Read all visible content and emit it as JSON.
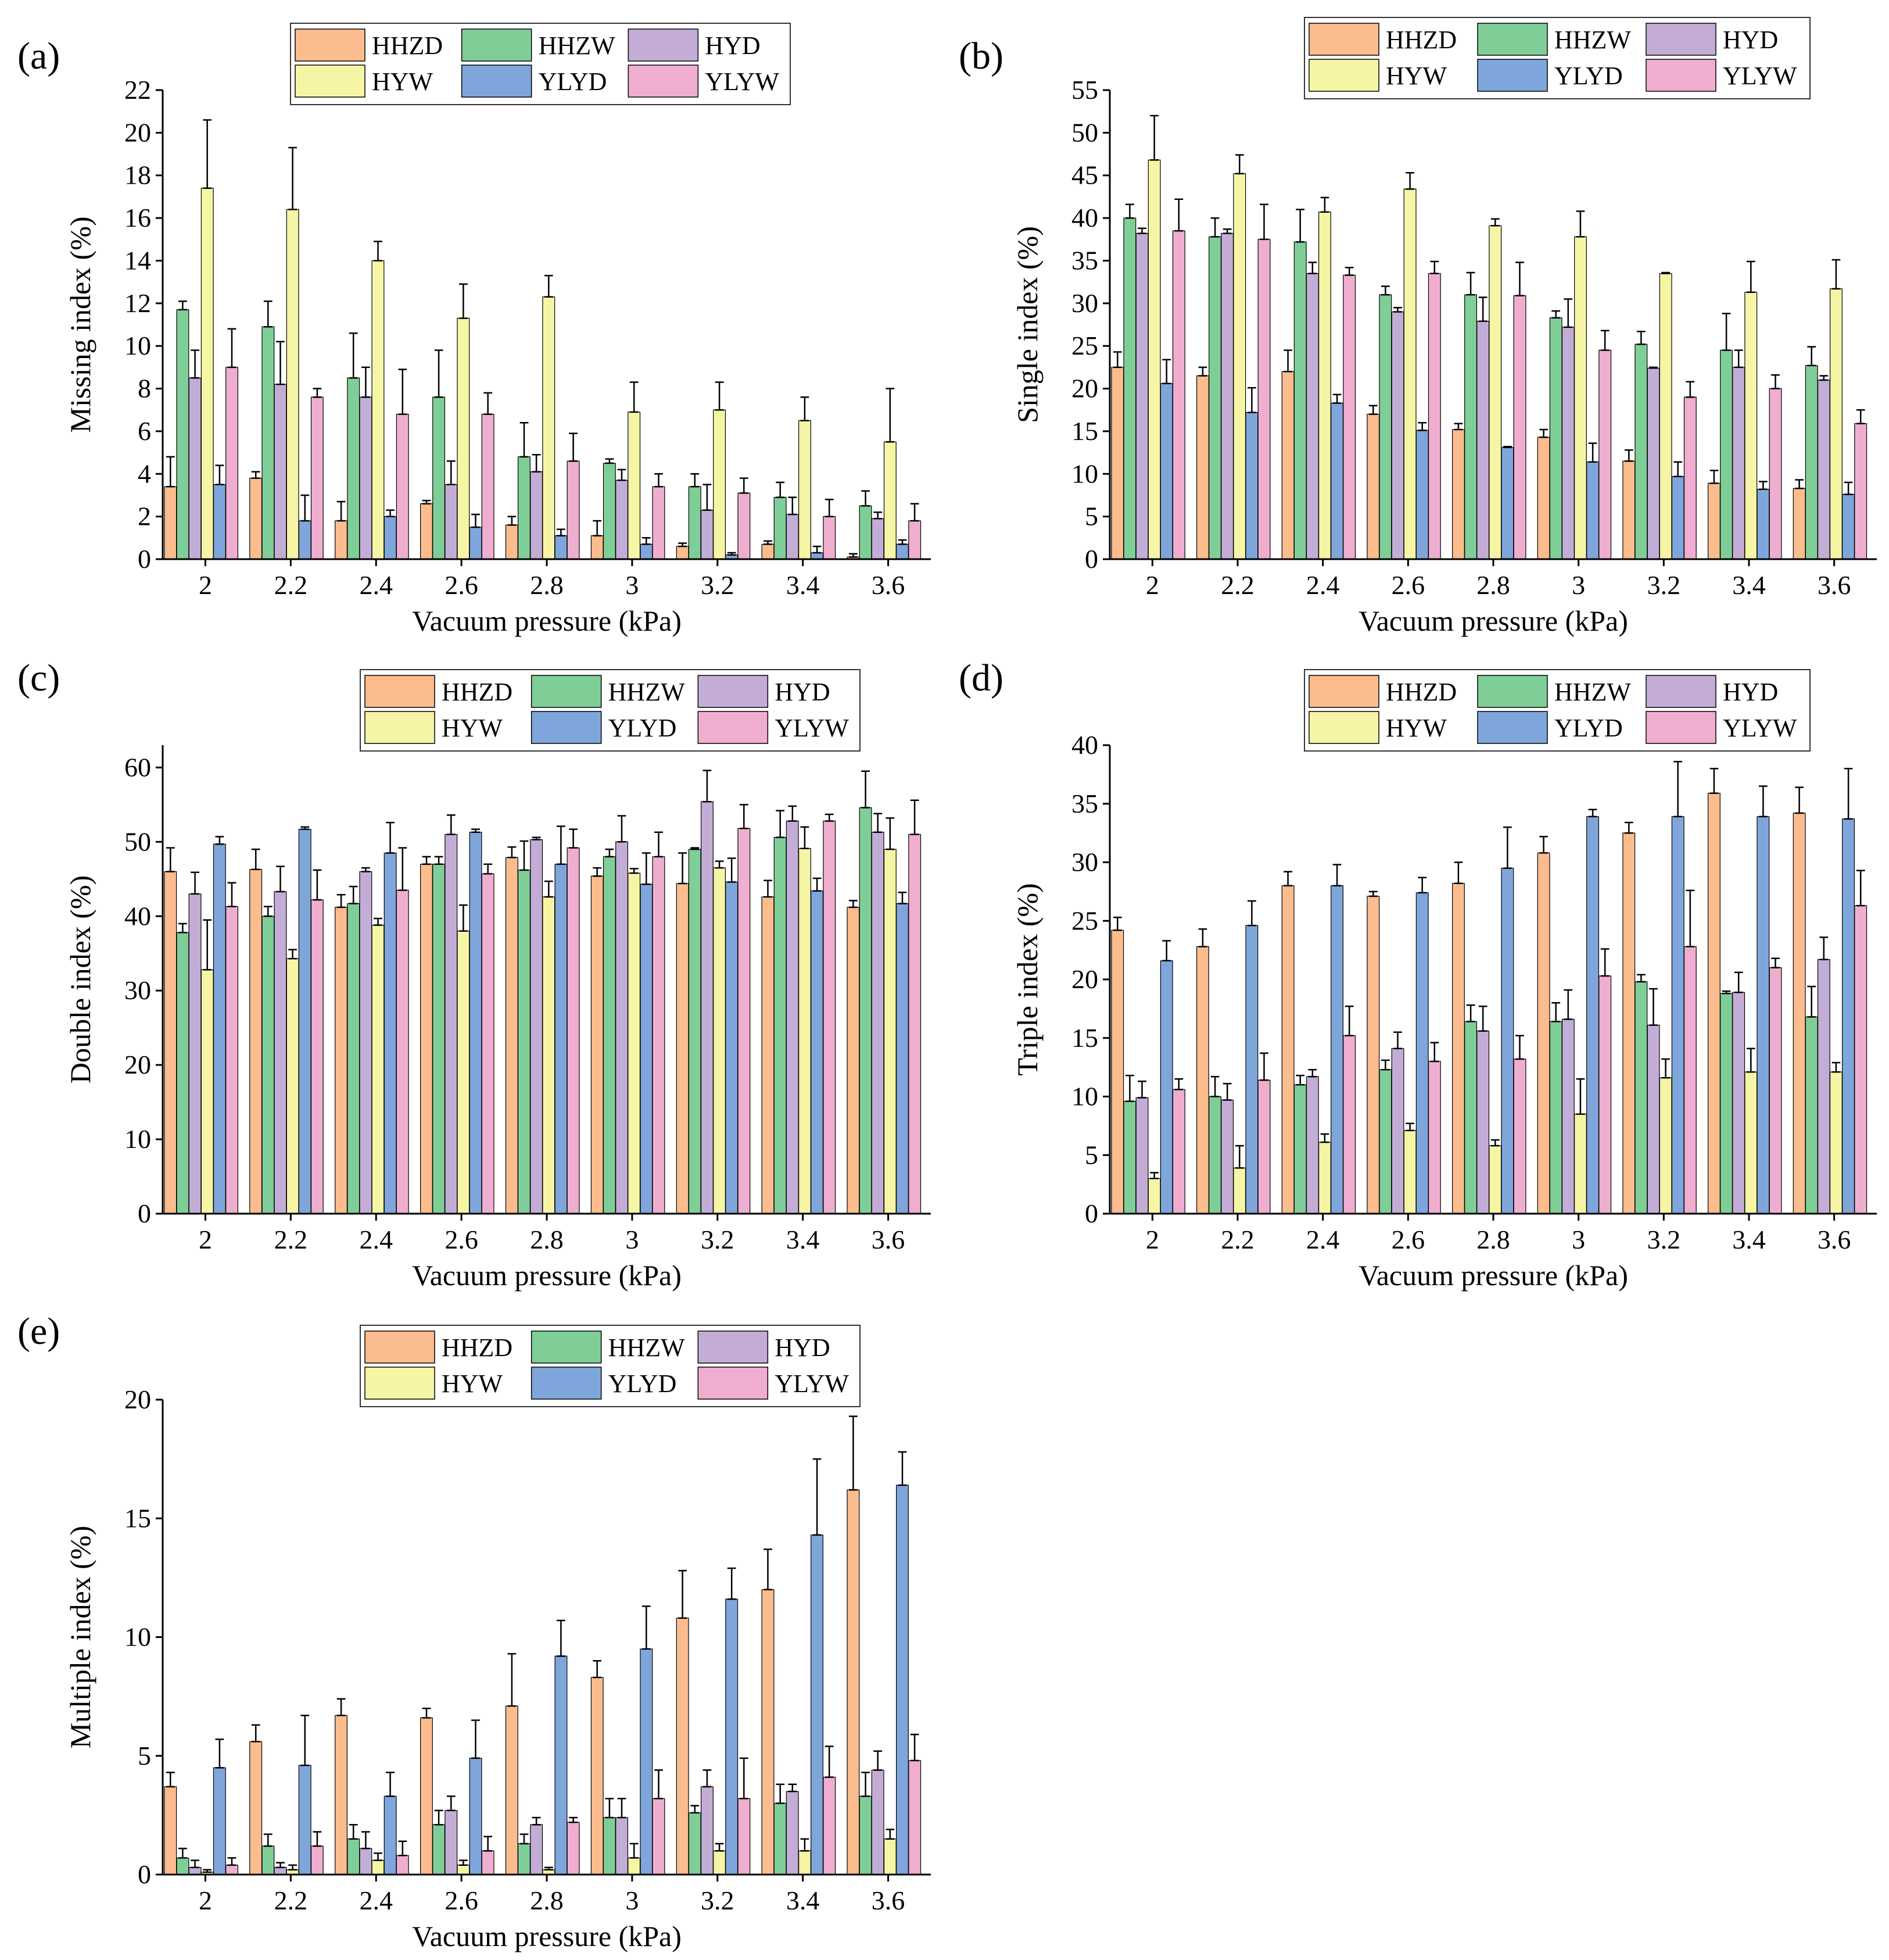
{
  "figure": {
    "colors": {
      "HHZD": "#FBBC8E",
      "HHZW": "#7FCE98",
      "HYD": "#C3ADD6",
      "HYW": "#F5F5A5",
      "YLYD": "#7FA6DB",
      "YLYW": "#EFAED0"
    }
  },
  "chart_data": [
    {
      "type": "bar",
      "panel": "(a)",
      "title": "",
      "xlabel": "Vacuum pressure (kPa)",
      "ylabel": "Missing index (%)",
      "ylim": [
        0,
        22
      ],
      "yticks": [
        0,
        2,
        4,
        6,
        8,
        10,
        12,
        14,
        16,
        18,
        20,
        22
      ],
      "categories": [
        "2",
        "2.2",
        "2.4",
        "2.6",
        "2.8",
        "3",
        "3.2",
        "3.4",
        "3.6"
      ],
      "legend": "top-center",
      "series": [
        {
          "name": "HHZD",
          "values": [
            3.4,
            3.8,
            1.8,
            2.6,
            1.6,
            1.1,
            0.6,
            0.7,
            0.1
          ],
          "errors": [
            1.4,
            0.3,
            0.9,
            0.15,
            0.4,
            0.7,
            0.15,
            0.15,
            0.15
          ]
        },
        {
          "name": "HHZW",
          "values": [
            11.7,
            10.9,
            8.5,
            7.6,
            4.8,
            4.5,
            3.4,
            2.9,
            2.5
          ],
          "errors": [
            0.4,
            1.2,
            2.1,
            2.2,
            1.6,
            0.2,
            0.6,
            0.7,
            0.7
          ]
        },
        {
          "name": "HYD",
          "values": [
            8.5,
            8.2,
            7.6,
            3.5,
            4.1,
            3.7,
            2.3,
            2.1,
            1.9
          ],
          "errors": [
            1.3,
            2.0,
            1.4,
            1.1,
            0.8,
            0.5,
            1.2,
            0.8,
            0.3
          ]
        },
        {
          "name": "HYW",
          "values": [
            17.4,
            16.4,
            14.0,
            11.3,
            12.3,
            6.9,
            7.0,
            6.5,
            5.5
          ],
          "errors": [
            3.2,
            2.9,
            0.9,
            1.6,
            1.0,
            1.4,
            1.3,
            1.1,
            2.5
          ]
        },
        {
          "name": "YLYD",
          "values": [
            3.5,
            1.8,
            2.0,
            1.5,
            1.1,
            0.7,
            0.2,
            0.3,
            0.7
          ],
          "errors": [
            0.9,
            1.2,
            0.3,
            0.6,
            0.3,
            0.3,
            0.1,
            0.3,
            0.2
          ]
        },
        {
          "name": "YLYW",
          "values": [
            9.0,
            7.6,
            6.8,
            6.8,
            4.6,
            3.4,
            3.1,
            2.0,
            1.8
          ],
          "errors": [
            1.8,
            0.4,
            2.1,
            1.0,
            1.3,
            0.6,
            0.7,
            0.8,
            0.8
          ]
        }
      ]
    },
    {
      "type": "bar",
      "panel": "(b)",
      "title": "",
      "xlabel": "Vacuum pressure (kPa)",
      "ylabel": "Single index (%)",
      "ylim": [
        0,
        55
      ],
      "yticks": [
        0,
        5,
        10,
        15,
        20,
        25,
        30,
        35,
        40,
        45,
        50,
        55
      ],
      "categories": [
        "2",
        "2.2",
        "2.4",
        "2.6",
        "2.8",
        "3",
        "3.2",
        "3.4",
        "3.6"
      ],
      "legend": "top-right",
      "series": [
        {
          "name": "HHZD",
          "values": [
            22.5,
            21.5,
            22.0,
            17.0,
            15.2,
            14.3,
            11.5,
            8.9,
            8.3
          ],
          "errors": [
            1.8,
            1.0,
            2.5,
            1.0,
            0.7,
            0.9,
            1.3,
            1.5,
            1.0
          ]
        },
        {
          "name": "HHZW",
          "values": [
            40.0,
            37.8,
            37.2,
            31.0,
            31.0,
            28.3,
            25.2,
            24.5,
            22.7
          ],
          "errors": [
            1.6,
            2.2,
            3.8,
            1.0,
            2.6,
            0.8,
            1.5,
            4.3,
            2.2
          ]
        },
        {
          "name": "HYD",
          "values": [
            38.2,
            38.2,
            33.5,
            29.0,
            27.9,
            27.2,
            22.4,
            22.5,
            21.0
          ],
          "errors": [
            0.6,
            0.5,
            1.3,
            0.5,
            2.8,
            3.3,
            0.1,
            2.0,
            0.5
          ]
        },
        {
          "name": "HYW",
          "values": [
            46.8,
            45.2,
            40.7,
            43.4,
            39.1,
            37.8,
            33.5,
            31.3,
            31.7
          ],
          "errors": [
            5.2,
            2.2,
            1.7,
            1.9,
            0.8,
            3.0,
            0.1,
            3.6,
            3.4
          ]
        },
        {
          "name": "YLYD",
          "values": [
            20.6,
            17.2,
            18.3,
            15.1,
            13.1,
            11.4,
            9.7,
            8.2,
            7.6
          ],
          "errors": [
            2.8,
            2.9,
            1.0,
            0.9,
            0.1,
            2.2,
            1.7,
            0.9,
            1.4
          ]
        },
        {
          "name": "YLYW",
          "values": [
            38.5,
            37.5,
            33.3,
            33.5,
            30.9,
            24.5,
            19.0,
            20.0,
            15.9
          ],
          "errors": [
            3.7,
            4.1,
            0.9,
            1.4,
            3.9,
            2.3,
            1.8,
            1.6,
            1.6
          ]
        }
      ]
    },
    {
      "type": "bar",
      "panel": "(c)",
      "title": "",
      "xlabel": "Vacuum pressure (kPa)",
      "ylabel": "Double index (%)",
      "ylim": [
        0,
        63
      ],
      "yticks": [
        0,
        10,
        20,
        30,
        40,
        50,
        60
      ],
      "categories": [
        "2",
        "2.2",
        "2.4",
        "2.6",
        "2.8",
        "3",
        "3.2",
        "3.4",
        "3.6"
      ],
      "legend": "top-right",
      "series": [
        {
          "name": "HHZD",
          "values": [
            46.0,
            46.3,
            41.2,
            47.0,
            47.9,
            45.4,
            44.4,
            42.6,
            41.2
          ],
          "errors": [
            3.2,
            2.7,
            1.7,
            1.0,
            1.4,
            1.1,
            4.1,
            2.2,
            0.9
          ]
        },
        {
          "name": "HHZW",
          "values": [
            37.8,
            40.0,
            41.7,
            47.0,
            46.2,
            48.0,
            49.0,
            50.6,
            54.6
          ],
          "errors": [
            1.2,
            1.3,
            2.3,
            1.0,
            3.9,
            1.0,
            0.2,
            3.6,
            4.9
          ]
        },
        {
          "name": "HYD",
          "values": [
            43.0,
            43.3,
            46.0,
            51.0,
            50.3,
            50.0,
            55.4,
            52.8,
            51.3
          ],
          "errors": [
            2.9,
            3.4,
            0.5,
            2.6,
            0.3,
            3.5,
            4.2,
            2.0,
            2.5
          ]
        },
        {
          "name": "HYW",
          "values": [
            32.8,
            34.3,
            38.8,
            38.0,
            42.6,
            45.8,
            46.5,
            49.1,
            49.0
          ],
          "errors": [
            6.7,
            1.2,
            0.9,
            3.5,
            2.1,
            0.6,
            0.9,
            2.9,
            4.2
          ]
        },
        {
          "name": "YLYD",
          "values": [
            49.7,
            51.7,
            48.5,
            51.3,
            47.0,
            44.3,
            44.6,
            43.4,
            41.7
          ],
          "errors": [
            1.0,
            0.3,
            4.1,
            0.4,
            5.1,
            4.2,
            3.2,
            1.7,
            1.5
          ]
        },
        {
          "name": "YLYW",
          "values": [
            41.3,
            42.2,
            43.5,
            45.7,
            49.2,
            48.0,
            51.8,
            52.8,
            51.0
          ],
          "errors": [
            3.2,
            4.0,
            5.7,
            1.3,
            2.5,
            3.3,
            3.2,
            0.9,
            4.6
          ]
        }
      ]
    },
    {
      "type": "bar",
      "panel": "(d)",
      "title": "",
      "xlabel": "Vacuum pressure (kPa)",
      "ylabel": "Triple index (%)",
      "ylim": [
        0,
        40
      ],
      "yticks": [
        0,
        5,
        10,
        15,
        20,
        25,
        30,
        35,
        40
      ],
      "categories": [
        "2",
        "2.2",
        "2.4",
        "2.6",
        "2.8",
        "3",
        "3.2",
        "3.4",
        "3.6"
      ],
      "legend": "top-right",
      "series": [
        {
          "name": "HHZD",
          "values": [
            24.2,
            22.8,
            28.0,
            27.1,
            28.2,
            30.8,
            32.5,
            35.9,
            34.2
          ],
          "errors": [
            1.1,
            1.5,
            1.2,
            0.4,
            1.8,
            1.4,
            0.9,
            2.1,
            2.2
          ]
        },
        {
          "name": "HHZW",
          "values": [
            9.6,
            10.0,
            11.0,
            12.3,
            16.4,
            16.4,
            19.8,
            18.8,
            16.8
          ],
          "errors": [
            2.2,
            1.7,
            0.8,
            0.8,
            1.4,
            1.6,
            0.6,
            0.2,
            2.6
          ]
        },
        {
          "name": "HYD",
          "values": [
            9.9,
            9.7,
            11.7,
            14.1,
            15.6,
            16.6,
            16.1,
            18.9,
            21.7
          ],
          "errors": [
            1.4,
            1.4,
            0.6,
            1.4,
            2.1,
            2.5,
            3.1,
            1.7,
            1.9
          ]
        },
        {
          "name": "HYW",
          "values": [
            3.0,
            3.9,
            6.1,
            7.1,
            5.8,
            8.5,
            11.6,
            12.1,
            12.1
          ],
          "errors": [
            0.5,
            1.9,
            0.7,
            0.6,
            0.5,
            3.0,
            1.6,
            2.0,
            0.8
          ]
        },
        {
          "name": "YLYD",
          "values": [
            21.6,
            24.6,
            28.0,
            27.4,
            29.5,
            33.9,
            33.9,
            33.9,
            33.7
          ],
          "errors": [
            1.7,
            2.1,
            1.8,
            1.3,
            3.5,
            0.6,
            4.7,
            2.6,
            4.3
          ]
        },
        {
          "name": "YLYW",
          "values": [
            10.6,
            11.4,
            15.2,
            13.0,
            13.2,
            20.3,
            22.8,
            21.0,
            26.3
          ],
          "errors": [
            0.9,
            2.3,
            2.5,
            1.6,
            2.0,
            2.3,
            4.8,
            0.8,
            3.0
          ]
        }
      ]
    },
    {
      "type": "bar",
      "panel": "(e)",
      "title": "",
      "xlabel": "Vacuum pressure (kPa)",
      "ylabel": "Multiple index (%)",
      "ylim": [
        0,
        20
      ],
      "yticks": [
        0,
        5,
        10,
        15,
        20
      ],
      "categories": [
        "2",
        "2.2",
        "2.4",
        "2.6",
        "2.8",
        "3",
        "3.2",
        "3.4",
        "3.6"
      ],
      "legend": "top-right",
      "series": [
        {
          "name": "HHZD",
          "values": [
            3.7,
            5.6,
            6.7,
            6.6,
            7.1,
            8.3,
            10.8,
            12.0,
            16.2
          ],
          "errors": [
            0.6,
            0.7,
            0.7,
            0.4,
            2.2,
            0.7,
            2.0,
            1.7,
            3.1
          ]
        },
        {
          "name": "HHZW",
          "values": [
            0.7,
            1.2,
            1.5,
            2.1,
            1.3,
            2.4,
            2.6,
            3.0,
            3.3
          ],
          "errors": [
            0.4,
            0.5,
            0.6,
            0.6,
            0.4,
            0.8,
            0.3,
            0.8,
            1.0
          ]
        },
        {
          "name": "HYD",
          "values": [
            0.3,
            0.3,
            1.1,
            2.7,
            2.1,
            2.4,
            3.7,
            3.5,
            4.4
          ],
          "errors": [
            0.3,
            0.2,
            0.7,
            0.6,
            0.3,
            0.8,
            0.7,
            0.3,
            0.8
          ]
        },
        {
          "name": "HYW",
          "values": [
            0.1,
            0.2,
            0.6,
            0.4,
            0.2,
            0.7,
            1.0,
            1.0,
            1.5
          ],
          "errors": [
            0.1,
            0.2,
            0.3,
            0.2,
            0.1,
            0.6,
            0.3,
            0.5,
            0.4
          ]
        },
        {
          "name": "YLYD",
          "values": [
            4.5,
            4.6,
            3.3,
            4.9,
            9.2,
            9.5,
            11.6,
            14.3,
            16.4
          ],
          "errors": [
            1.2,
            2.1,
            1.0,
            1.6,
            1.5,
            1.8,
            1.3,
            3.2,
            1.4
          ]
        },
        {
          "name": "YLYW",
          "values": [
            0.4,
            1.2,
            0.8,
            1.0,
            2.2,
            3.2,
            3.2,
            4.1,
            4.8
          ],
          "errors": [
            0.3,
            0.6,
            0.6,
            0.6,
            0.2,
            1.2,
            1.7,
            1.3,
            1.1
          ]
        }
      ]
    }
  ]
}
